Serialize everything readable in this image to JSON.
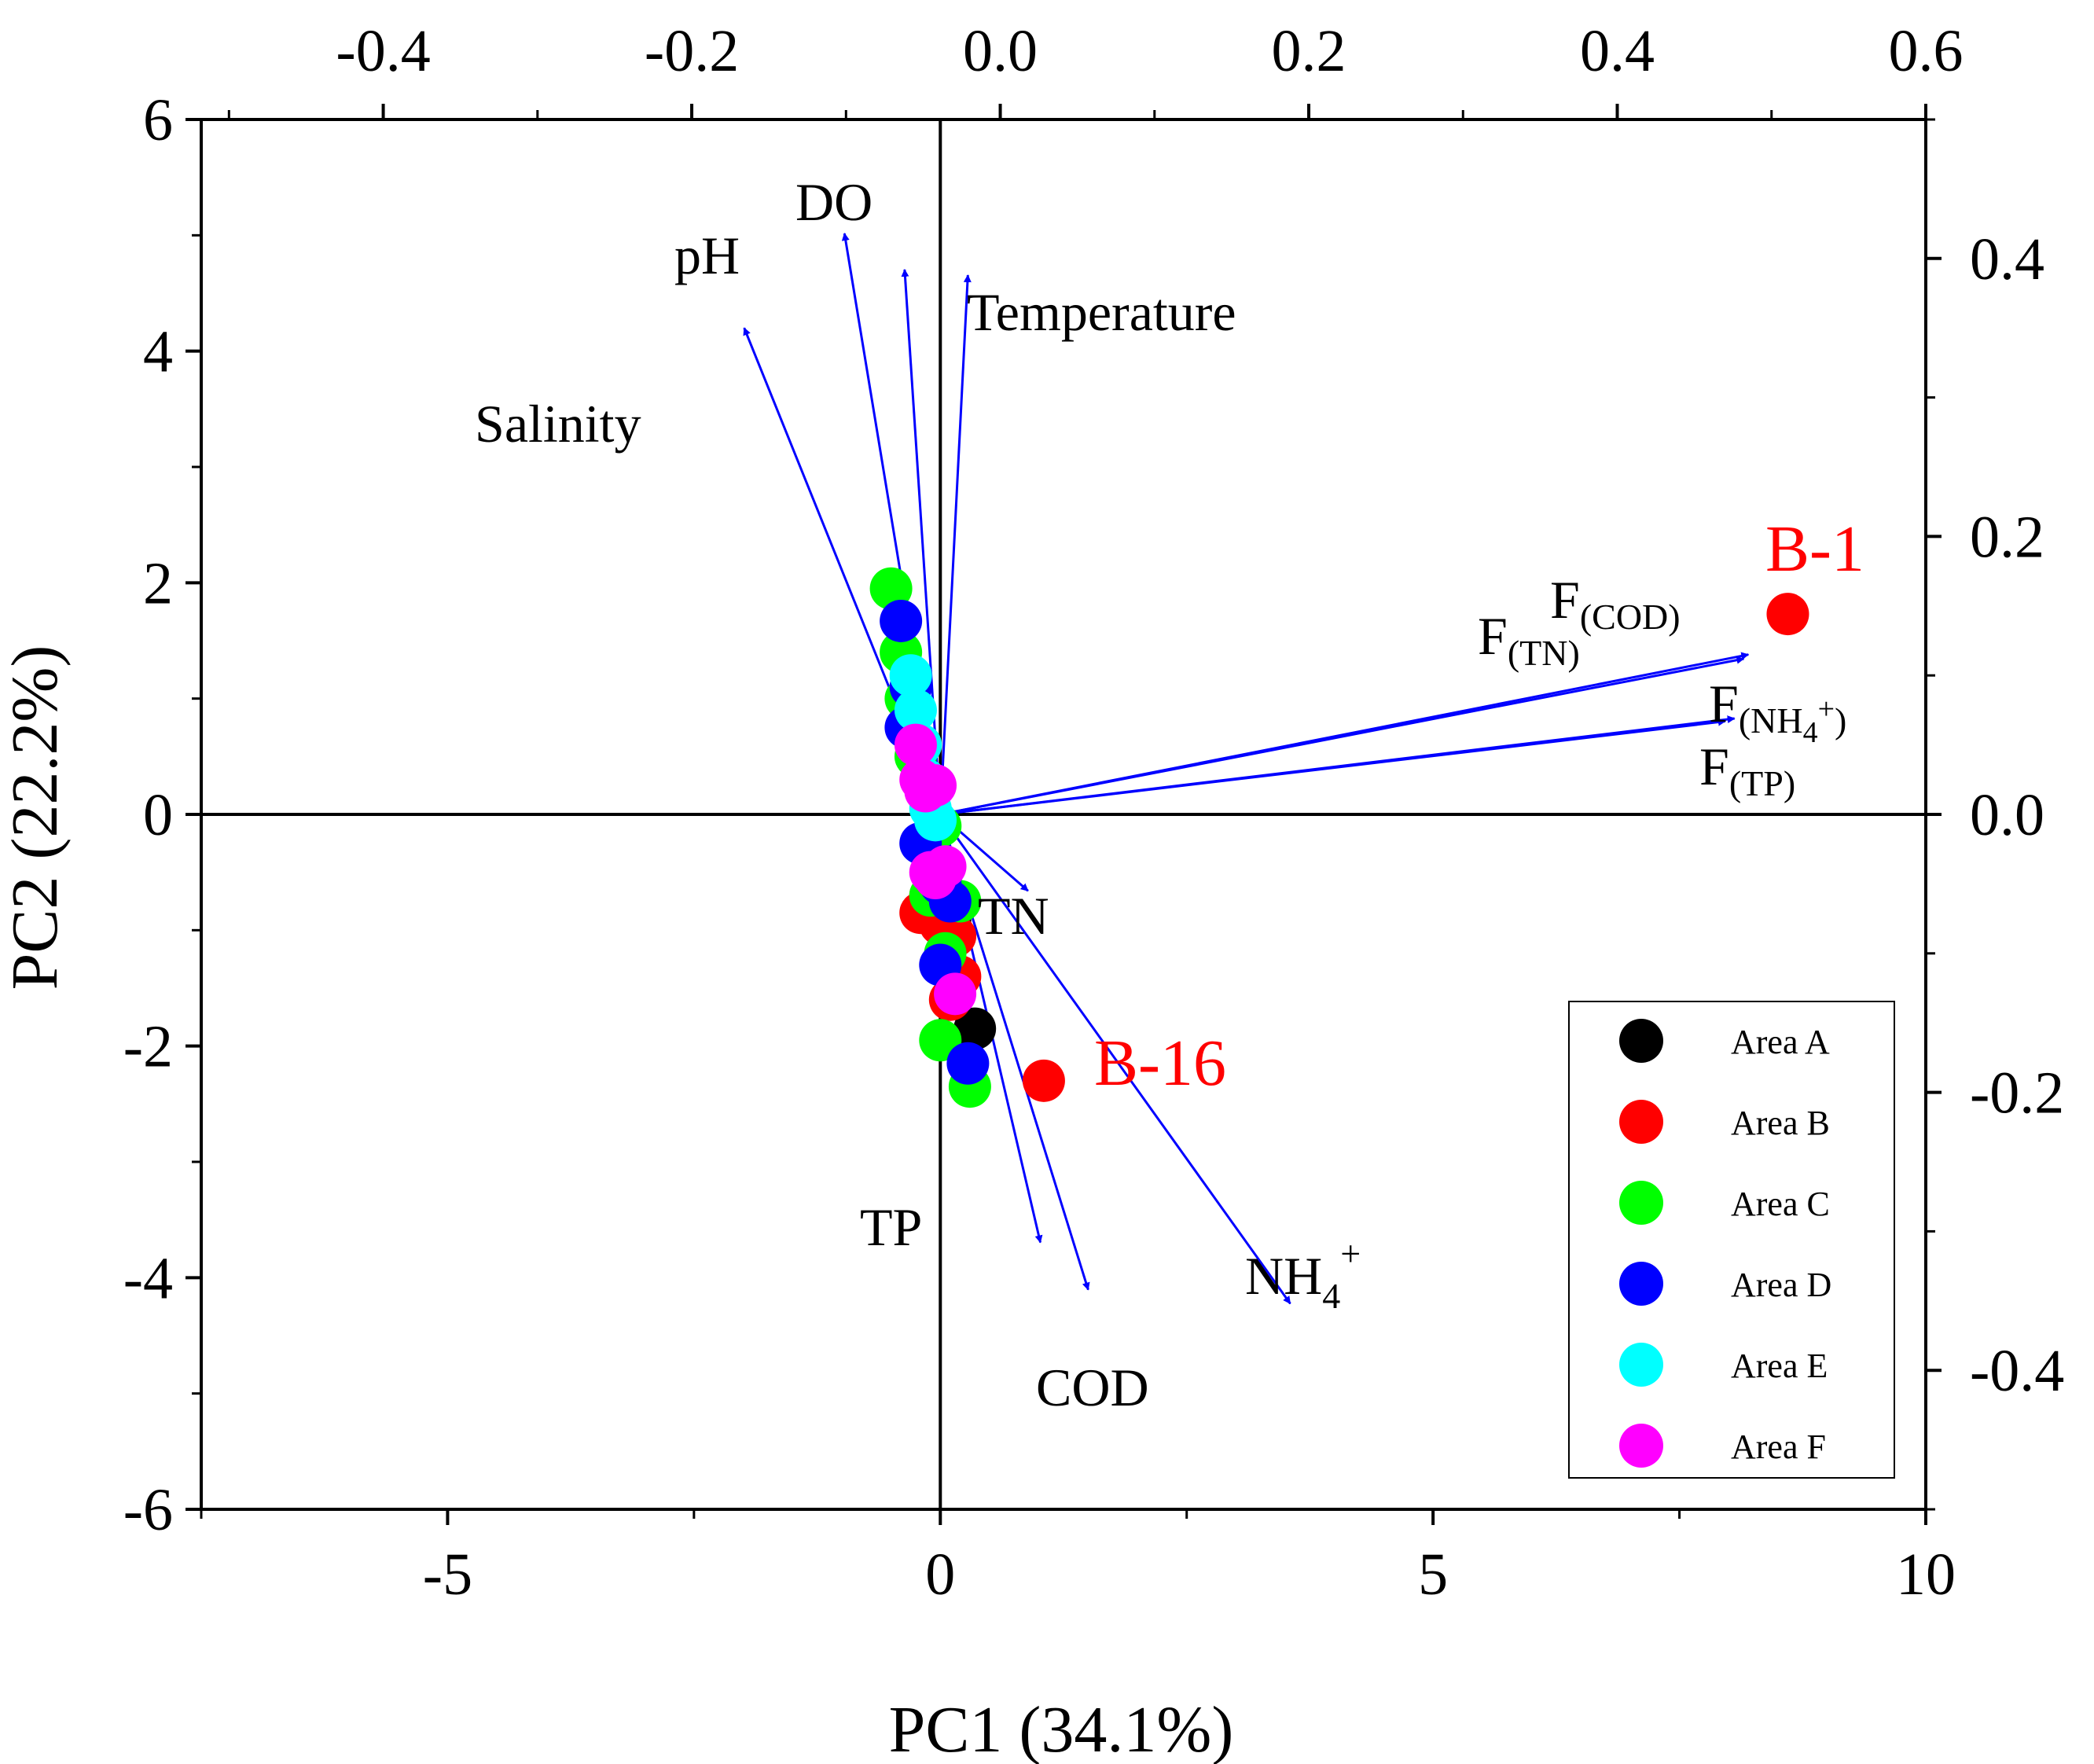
{
  "chart_data": {
    "type": "scatter",
    "subtype": "pca-biplot",
    "xlabel": "PC1 (34.1%)",
    "ylabel": "PC2 (22.2%)",
    "xlim": [
      -7.5,
      10
    ],
    "ylim": [
      -6,
      6
    ],
    "x_ticks": [
      -5,
      0,
      5,
      10
    ],
    "y_ticks": [
      -6,
      -4,
      -2,
      0,
      2,
      4,
      6
    ],
    "loading_axes": {
      "top_lim": [
        -0.518,
        0.6
      ],
      "top_ticks": [
        -0.4,
        -0.2,
        0.0,
        0.2,
        0.4,
        0.6
      ],
      "right_lim": [
        -0.5,
        0.5
      ],
      "right_ticks": [
        -0.4,
        -0.2,
        0.0,
        0.2,
        0.4
      ]
    },
    "loadings": [
      {
        "name": "pH",
        "x": -0.101,
        "y": 0.418,
        "text": "pH"
      },
      {
        "name": "DO",
        "x": -0.062,
        "y": 0.392,
        "text": "DO"
      },
      {
        "name": "Temperature",
        "x": -0.021,
        "y": 0.388,
        "text": "Temperature"
      },
      {
        "name": "Salinity",
        "x": -0.166,
        "y": 0.35,
        "text": "Salinity"
      },
      {
        "name": "F(COD)",
        "x": 0.485,
        "y": 0.115,
        "text": "F",
        "sub": "(COD)"
      },
      {
        "name": "F(TN)",
        "x": 0.482,
        "y": 0.112,
        "text": "F",
        "sub": "(TN)"
      },
      {
        "name": "F(NH4+)",
        "x": 0.476,
        "y": 0.069,
        "text": "F",
        "sub_pre": "(NH",
        "sub_sub": "4",
        "sub_sup": "+",
        "sub_post": ")"
      },
      {
        "name": "F(TP)",
        "x": 0.47,
        "y": 0.067,
        "text": "F",
        "sub": "(TP)"
      },
      {
        "name": "TN",
        "x": 0.018,
        "y": -0.055,
        "text": "TN"
      },
      {
        "name": "TP",
        "x": 0.026,
        "y": -0.308,
        "text": "TP"
      },
      {
        "name": "COD",
        "x": 0.057,
        "y": -0.342,
        "text": "COD"
      },
      {
        "name": "NH4+",
        "x": 0.188,
        "y": -0.352,
        "text": "NH",
        "tail_sub": "4",
        "tail_sup": "+"
      }
    ],
    "series": [
      {
        "name": "Area A",
        "color": "#000000",
        "points": [
          [
            0.35,
            -1.85
          ],
          [
            0.1,
            -0.9
          ]
        ]
      },
      {
        "name": "Area B",
        "color": "#ff0000",
        "points": [
          [
            8.6,
            1.73
          ],
          [
            1.05,
            -2.3
          ],
          [
            -0.2,
            -0.85
          ],
          [
            0.0,
            -0.95
          ],
          [
            0.15,
            -1.05
          ],
          [
            0.2,
            -1.4
          ],
          [
            0.1,
            -1.6
          ],
          [
            -0.1,
            -0.7
          ]
        ]
      },
      {
        "name": "Area C",
        "color": "#00ff00",
        "points": [
          [
            -0.5,
            1.95
          ],
          [
            -0.4,
            1.4
          ],
          [
            -0.35,
            1.0
          ],
          [
            -0.25,
            0.5
          ],
          [
            -0.1,
            0.2
          ],
          [
            0.0,
            -0.1
          ],
          [
            -0.1,
            -0.7
          ],
          [
            0.05,
            -1.2
          ],
          [
            0.0,
            -1.95
          ],
          [
            0.3,
            -2.35
          ],
          [
            0.2,
            -0.75
          ]
        ]
      },
      {
        "name": "Area D",
        "color": "#0000ff",
        "points": [
          [
            -0.4,
            1.67
          ],
          [
            -0.3,
            1.1
          ],
          [
            -0.35,
            0.75
          ],
          [
            -0.2,
            -0.25
          ],
          [
            0.0,
            -0.6
          ],
          [
            0.1,
            -0.75
          ],
          [
            0.0,
            -1.3
          ],
          [
            0.28,
            -2.15
          ]
        ]
      },
      {
        "name": "Area E",
        "color": "#00ffff",
        "points": [
          [
            -0.3,
            1.2
          ],
          [
            -0.25,
            0.9
          ],
          [
            -0.2,
            0.6
          ],
          [
            -0.15,
            0.3
          ],
          [
            -0.1,
            0.05
          ],
          [
            -0.05,
            -0.05
          ]
        ]
      },
      {
        "name": "Area F",
        "color": "#ff00ff",
        "points": [
          [
            -0.25,
            0.6
          ],
          [
            -0.2,
            0.3
          ],
          [
            -0.15,
            0.2
          ],
          [
            -0.05,
            0.25
          ],
          [
            -0.1,
            -0.5
          ],
          [
            -0.05,
            -0.55
          ],
          [
            0.05,
            -0.45
          ],
          [
            0.15,
            -1.55
          ]
        ]
      }
    ],
    "annotations": [
      {
        "text": "B-1",
        "color": "#ff0000",
        "x": 8.6,
        "y": 1.73
      },
      {
        "text": "B-16",
        "color": "#ff0000",
        "x": 1.05,
        "y": -2.3
      }
    ],
    "legend_position": "bottom-right",
    "arrow_color": "#0000ff"
  }
}
